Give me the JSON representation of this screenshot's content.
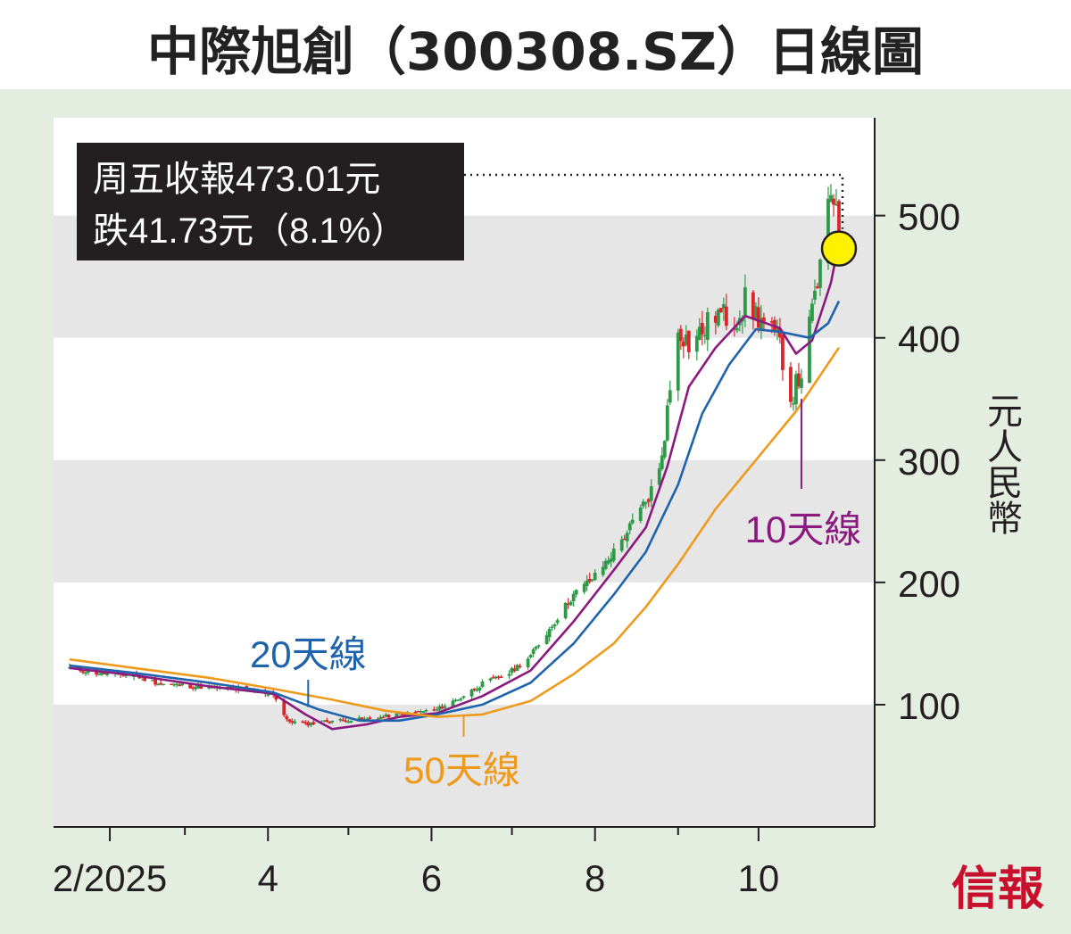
{
  "title": "中際旭創（300308.SZ）日線圖",
  "info_box": {
    "line1": "周五收報473.01元",
    "line2": "跌41.73元（8.1%）"
  },
  "logo": "信報",
  "colors": {
    "page_bg": "#e3eee0",
    "plot_bg": "#ffffff",
    "band": "#e6e6e6",
    "candle_up": "#2e9a48",
    "candle_down": "#d9262b",
    "ma10": "#8b1a7e",
    "ma20": "#1f63ad",
    "ma50": "#ee9a1d",
    "marker": "#fff200",
    "info_box_bg": "#231f20"
  },
  "chart_data": {
    "type": "candlestick",
    "title": "中際旭創（300308.SZ）日線圖",
    "xlabel": "",
    "ylabel": "元人民幣",
    "x_range": [
      "2025-01-17",
      "2025-10-31"
    ],
    "ylim": [
      0,
      580
    ],
    "y_ticks": [
      100,
      200,
      300,
      400,
      500
    ],
    "y_tick_labels": [
      "100",
      "200",
      "300",
      "400",
      "500"
    ],
    "x_ticks": [
      {
        "date": "2025-02-01",
        "label": "2/2025"
      },
      {
        "date": "2025-03-01",
        "label": ""
      },
      {
        "date": "2025-04-01",
        "label": "4"
      },
      {
        "date": "2025-05-01",
        "label": ""
      },
      {
        "date": "2025-06-01",
        "label": "6"
      },
      {
        "date": "2025-07-01",
        "label": ""
      },
      {
        "date": "2025-08-01",
        "label": "8"
      },
      {
        "date": "2025-09-01",
        "label": ""
      },
      {
        "date": "2025-10-01",
        "label": "10"
      }
    ],
    "grid_bands": [
      [
        0,
        100
      ],
      [
        200,
        300
      ],
      [
        400,
        500
      ]
    ],
    "legend": "none",
    "close_path": [
      [
        "2025-01-17",
        130
      ],
      [
        "2025-01-27",
        126
      ],
      [
        "2025-02-10",
        124
      ],
      [
        "2025-02-20",
        117
      ],
      [
        "2025-03-05",
        115
      ],
      [
        "2025-03-20",
        113
      ],
      [
        "2025-04-03",
        109
      ],
      [
        "2025-04-08",
        87
      ],
      [
        "2025-04-15",
        84
      ],
      [
        "2025-04-25",
        87
      ],
      [
        "2025-05-08",
        88
      ],
      [
        "2025-05-20",
        92
      ],
      [
        "2025-06-03",
        96
      ],
      [
        "2025-06-12",
        106
      ],
      [
        "2025-06-20",
        117
      ],
      [
        "2025-06-30",
        126
      ],
      [
        "2025-07-08",
        140
      ],
      [
        "2025-07-16",
        165
      ],
      [
        "2025-07-24",
        190
      ],
      [
        "2025-08-01",
        205
      ],
      [
        "2025-08-08",
        225
      ],
      [
        "2025-08-14",
        245
      ],
      [
        "2025-08-20",
        265
      ],
      [
        "2025-08-25",
        290
      ],
      [
        "2025-08-28",
        340
      ],
      [
        "2025-09-01",
        410
      ],
      [
        "2025-09-05",
        395
      ],
      [
        "2025-09-10",
        405
      ],
      [
        "2025-09-15",
        420
      ],
      [
        "2025-09-22",
        415
      ],
      [
        "2025-09-26",
        430
      ],
      [
        "2025-09-30",
        420
      ],
      [
        "2025-10-09",
        395
      ],
      [
        "2025-10-13",
        350
      ],
      [
        "2025-10-17",
        372
      ],
      [
        "2025-10-21",
        420
      ],
      [
        "2025-10-24",
        458
      ],
      [
        "2025-10-28",
        515
      ],
      [
        "2025-10-30",
        514.74
      ],
      [
        "2025-10-31",
        473.01
      ]
    ],
    "last_close": 473.01,
    "series": [
      {
        "name": "10天線",
        "points": [
          [
            "2025-01-17",
            130
          ],
          [
            "2025-02-10",
            124
          ],
          [
            "2025-03-10",
            115
          ],
          [
            "2025-04-03",
            109
          ],
          [
            "2025-04-15",
            92
          ],
          [
            "2025-04-25",
            80
          ],
          [
            "2025-05-08",
            84
          ],
          [
            "2025-05-20",
            90
          ],
          [
            "2025-06-03",
            93
          ],
          [
            "2025-06-20",
            107
          ],
          [
            "2025-07-08",
            128
          ],
          [
            "2025-07-24",
            168
          ],
          [
            "2025-08-08",
            210
          ],
          [
            "2025-08-20",
            245
          ],
          [
            "2025-08-28",
            295
          ],
          [
            "2025-09-05",
            360
          ],
          [
            "2025-09-15",
            392
          ],
          [
            "2025-09-26",
            418
          ],
          [
            "2025-10-09",
            408
          ],
          [
            "2025-10-15",
            387
          ],
          [
            "2025-10-21",
            398
          ],
          [
            "2025-10-28",
            445
          ],
          [
            "2025-10-31",
            478
          ]
        ]
      },
      {
        "name": "20天線",
        "points": [
          [
            "2025-01-17",
            132
          ],
          [
            "2025-02-10",
            126
          ],
          [
            "2025-03-10",
            118
          ],
          [
            "2025-04-03",
            110
          ],
          [
            "2025-04-20",
            96
          ],
          [
            "2025-05-05",
            87
          ],
          [
            "2025-05-20",
            87
          ],
          [
            "2025-06-03",
            92
          ],
          [
            "2025-06-20",
            100
          ],
          [
            "2025-07-08",
            118
          ],
          [
            "2025-07-24",
            150
          ],
          [
            "2025-08-08",
            190
          ],
          [
            "2025-08-20",
            225
          ],
          [
            "2025-09-01",
            280
          ],
          [
            "2025-09-10",
            338
          ],
          [
            "2025-09-20",
            378
          ],
          [
            "2025-09-30",
            407
          ],
          [
            "2025-10-09",
            405
          ],
          [
            "2025-10-20",
            400
          ],
          [
            "2025-10-27",
            412
          ],
          [
            "2025-10-31",
            430
          ]
        ]
      },
      {
        "name": "50天線",
        "points": [
          [
            "2025-01-17",
            137
          ],
          [
            "2025-02-10",
            130
          ],
          [
            "2025-03-10",
            122
          ],
          [
            "2025-04-03",
            113
          ],
          [
            "2025-04-25",
            104
          ],
          [
            "2025-05-15",
            95
          ],
          [
            "2025-06-03",
            90
          ],
          [
            "2025-06-20",
            92
          ],
          [
            "2025-07-08",
            103
          ],
          [
            "2025-07-24",
            125
          ],
          [
            "2025-08-08",
            150
          ],
          [
            "2025-08-20",
            180
          ],
          [
            "2025-09-01",
            215
          ],
          [
            "2025-09-15",
            260
          ],
          [
            "2025-09-30",
            300
          ],
          [
            "2025-10-15",
            340
          ],
          [
            "2025-10-31",
            392
          ]
        ]
      }
    ],
    "annotations": [
      {
        "text": "20天線",
        "series": "20天線",
        "date": "2025-04-16",
        "value": 98
      },
      {
        "text": "50天線",
        "series": "50天線",
        "date": "2025-06-13",
        "value": 92
      },
      {
        "text": "10天線",
        "series": "10天線",
        "date": "2025-10-17",
        "value": 372
      },
      {
        "text": "周五收報473.01元",
        "date": "2025-10-31",
        "value": 473.01
      }
    ]
  }
}
